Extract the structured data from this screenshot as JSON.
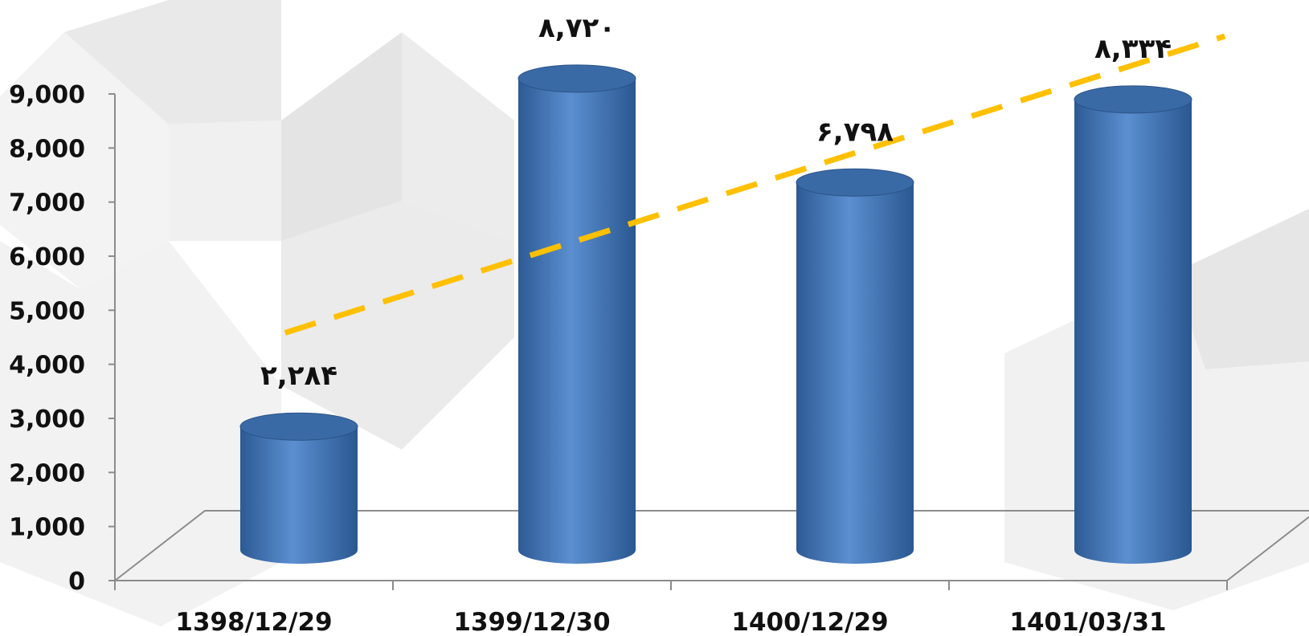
{
  "chart_data": {
    "type": "bar",
    "style": "3d-cylinder",
    "categories": [
      "1398/12/29",
      "1399/12/30",
      "1400/12/29",
      "1401/03/31"
    ],
    "values": [
      2284,
      8720,
      6798,
      8334
    ],
    "data_labels": [
      "۲,۲۸۴",
      "۸,۷۲۰",
      "۶,۷۹۸",
      "۸,۳۳۴"
    ],
    "ylim": [
      0,
      9000
    ],
    "yticks": [
      "0",
      "1,000",
      "2,000",
      "3,000",
      "4,000",
      "5,000",
      "6,000",
      "7,000",
      "8,000",
      "9,000"
    ],
    "trendline": {
      "type": "linear",
      "style": "dashed"
    },
    "grid": false,
    "legend": "none"
  },
  "colors": {
    "bar_light": "#5b8fd0",
    "bar_dark": "#2e5a92",
    "bar_top": "#3a6aa6",
    "trendline": "#ffc000",
    "axis": "#8c8c8c",
    "background_shapes": "#e6e6e6"
  }
}
